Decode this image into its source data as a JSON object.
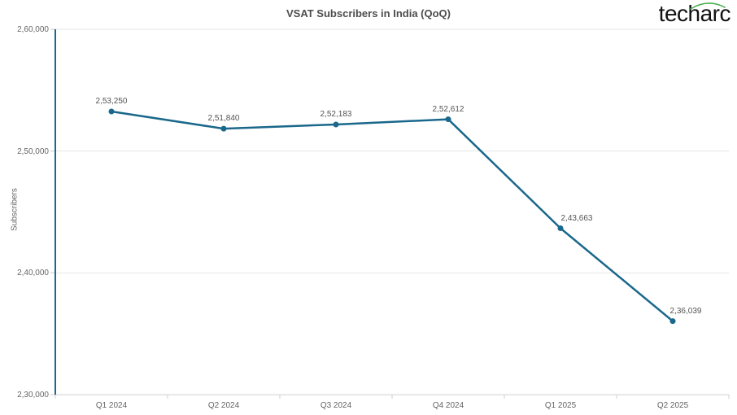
{
  "header": {
    "logo_text": "techarc"
  },
  "chart_data": {
    "type": "line",
    "title": "VSAT Subscribers in India (QoQ)",
    "ylabel": "Subscribers",
    "xlabel": "",
    "categories": [
      "Q1 2024",
      "Q2 2024",
      "Q3 2024",
      "Q4 2024",
      "Q1 2025",
      "Q2 2025"
    ],
    "series": [
      {
        "name": "VSAT Subscribers",
        "values": [
          253250,
          251840,
          252183,
          252612,
          243663,
          236039
        ]
      }
    ],
    "data_labels": [
      "2,53,250",
      "2,51,840",
      "2,52,183",
      "2,52,612",
      "2,43,663",
      "2,36,039"
    ],
    "ylim": [
      230000,
      260000
    ],
    "ytick_step": 10000,
    "ytick_labels": [
      "2,30,000",
      "2,40,000",
      "2,50,000",
      "2,60,000"
    ],
    "grid": true,
    "legend_position": "none",
    "colors": {
      "line": "#1a688b",
      "grid": "#e6e6e6",
      "y_axis_line": "#1a688b",
      "x_axis_line": "#d0d0d0",
      "tick": "#c9c9c9",
      "axis_text": "#666666",
      "data_label": "#555555",
      "title": "#4d4d4d",
      "logo_text": "#111111",
      "logo_arc": "#4caf50"
    }
  }
}
